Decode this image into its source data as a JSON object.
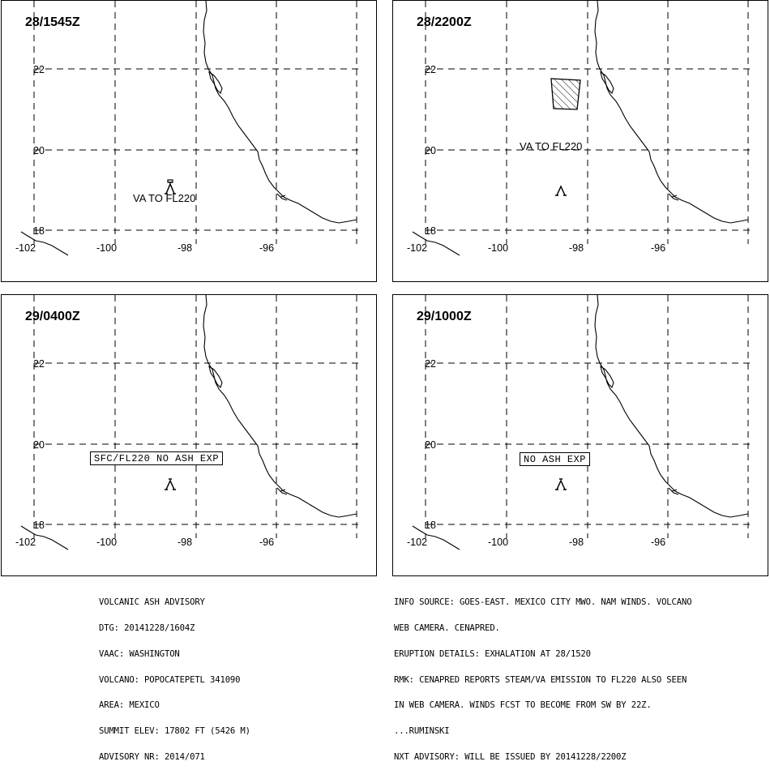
{
  "panels": [
    {
      "time": "28/1545Z",
      "annotation": "VA TO FL220",
      "box_label": ""
    },
    {
      "time": "28/2200Z",
      "annotation": "VA TO FL220",
      "box_label": ""
    },
    {
      "time": "29/0400Z",
      "annotation": "",
      "box_label": "SFC/FL220 NO ASH EXP"
    },
    {
      "time": "29/1000Z",
      "annotation": "",
      "box_label": "NO ASH EXP"
    }
  ],
  "lat_labels": [
    "22",
    "20",
    "18"
  ],
  "lon_labels": [
    "-102",
    "-100",
    "-98",
    "-96"
  ],
  "advisory_left": [
    "VOLCANIC ASH ADVISORY",
    "DTG: 20141228/1604Z",
    "VAAC: WASHINGTON",
    "VOLCANO: POPOCATEPETL 341090",
    "AREA: MEXICO",
    "SUMMIT ELEV: 17802 FT (5426 M)",
    "ADVISORY NR: 2014/071"
  ],
  "advisory_right": [
    "INFO SOURCE: GOES-EAST. MEXICO CITY MWO. NAM WINDS. VOLCANO",
    "WEB CAMERA. CENAPRED.",
    "ERUPTION DETAILS: EXHALATION AT 28/1520",
    "RMK: CENAPRED REPORTS STEAM/VA EMISSION TO FL220 ALSO SEEN",
    "IN WEB CAMERA. WINDS FCST TO BECOME FROM SW BY 22Z.",
    "...RUMINSKI",
    "NXT ADVISORY: WILL BE ISSUED BY 20141228/2200Z"
  ]
}
